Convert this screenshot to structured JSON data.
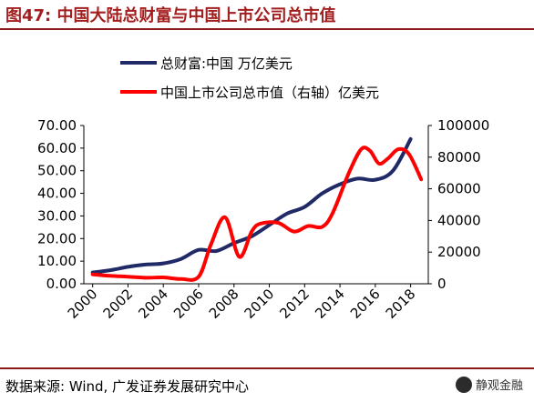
{
  "header": {
    "title": "图47:  中国大陆总财富与中国上市公司总市值"
  },
  "footer": {
    "source": "数据来源:  Wind, 广发证券发展研究中心",
    "watermark": "静观金融"
  },
  "colors": {
    "title": "#a31f1f",
    "rule": "#8b1a1a",
    "wealth": "#1f2a66",
    "marketcap": "#ff0000"
  },
  "chart_data": {
    "type": "line",
    "legend_position": "top",
    "grid": false,
    "x_ticks": [
      "2000",
      "2002",
      "2004",
      "2006",
      "2008",
      "2010",
      "2012",
      "2014",
      "2016",
      "2018"
    ],
    "xlim": [
      1999.5,
      2019
    ],
    "ylim_left": [
      0,
      70
    ],
    "ylim_right": [
      0,
      100000
    ],
    "y_ticks_left": [
      "0.00",
      "10.00",
      "20.00",
      "30.00",
      "40.00",
      "50.00",
      "60.00",
      "70.00"
    ],
    "y_ticks_right": [
      "0",
      "20000",
      "40000",
      "60000",
      "80000",
      "100000"
    ],
    "series": [
      {
        "name": "总财富:中国 万亿美元",
        "axis": "left",
        "color": "#1f2a66",
        "x": [
          2000,
          2001,
          2002,
          2003,
          2004,
          2005,
          2006,
          2007,
          2008,
          2009,
          2010,
          2011,
          2012,
          2013,
          2014,
          2015,
          2016,
          2017,
          2018
        ],
        "y": [
          5,
          6,
          7.5,
          8.5,
          9,
          11,
          15,
          14.5,
          18,
          21,
          26,
          31,
          34,
          40,
          44,
          46.5,
          46,
          50,
          64
        ]
      },
      {
        "name": "中国上市公司总市值（右轴）亿美元",
        "axis": "right",
        "color": "#ff0000",
        "x": [
          2000,
          2001,
          2002,
          2003,
          2004,
          2005,
          2006,
          2006.7,
          2007.5,
          2008.3,
          2009,
          2009.5,
          2010.5,
          2011.4,
          2012.2,
          2013,
          2013.6,
          2014.5,
          2015.2,
          2015.7,
          2016.2,
          2016.7,
          2017.3,
          2017.9,
          2018.6
        ],
        "y": [
          6000,
          5000,
          4500,
          3800,
          4000,
          3000,
          4500,
          25000,
          42000,
          17000,
          33000,
          38000,
          38500,
          33000,
          36500,
          36000,
          45000,
          70000,
          85000,
          84000,
          76000,
          79000,
          85000,
          82000,
          66000
        ]
      }
    ]
  }
}
